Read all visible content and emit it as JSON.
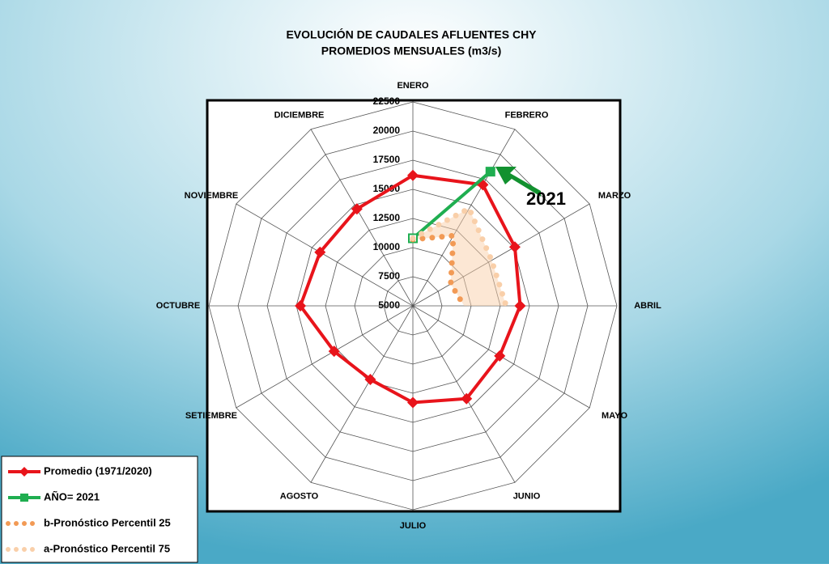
{
  "chart_data": {
    "type": "radar",
    "title": "EVOLUCIÓN DE CAUDALES AFLUENTES CHY",
    "subtitle": "PROMEDIOS MENSUALES (m3/s)",
    "categories": [
      "ENERO",
      "FEBRERO",
      "MARZO",
      "ABRIL",
      "MAYO",
      "JUNIO",
      "JULIO",
      "AGOSTO",
      "SETIEMBRE",
      "OCTUBRE",
      "NOVIEMBRE",
      "DICIEMBRE"
    ],
    "ylim": [
      5000,
      22500
    ],
    "yticks": [
      5000,
      7500,
      10000,
      12500,
      15000,
      17500,
      20000,
      22500
    ],
    "grid": true,
    "annotation": "2021",
    "legend": "bottom-left",
    "series": [
      {
        "name": "Promedio (1971/2020)",
        "color": "#e8141b",
        "style": "solid",
        "marker": "diamond",
        "values": [
          16200,
          17000,
          15100,
          14200,
          13600,
          14200,
          13300,
          12300,
          12800,
          14650,
          14200,
          14600
        ]
      },
      {
        "name": "AÑO= 2021",
        "color": "#1fae50",
        "style": "solid",
        "marker": "square",
        "values": [
          10800,
          18300,
          null,
          null,
          null,
          null,
          null,
          null,
          null,
          null,
          null,
          null
        ]
      },
      {
        "name": "b-Pronóstico Percentil 25",
        "color": "#f29a55",
        "style": "dotted",
        "values": [
          10700,
          11950,
          8750,
          9400,
          null,
          null,
          null,
          null,
          null,
          null,
          null,
          null
        ]
      },
      {
        "name": "a-Pronóstico Percentil 75",
        "color": "#f9cfa9",
        "style": "dotted",
        "values": [
          10800,
          14650,
          12800,
          13000,
          null,
          null,
          null,
          null,
          null,
          null,
          null,
          null
        ]
      }
    ]
  }
}
